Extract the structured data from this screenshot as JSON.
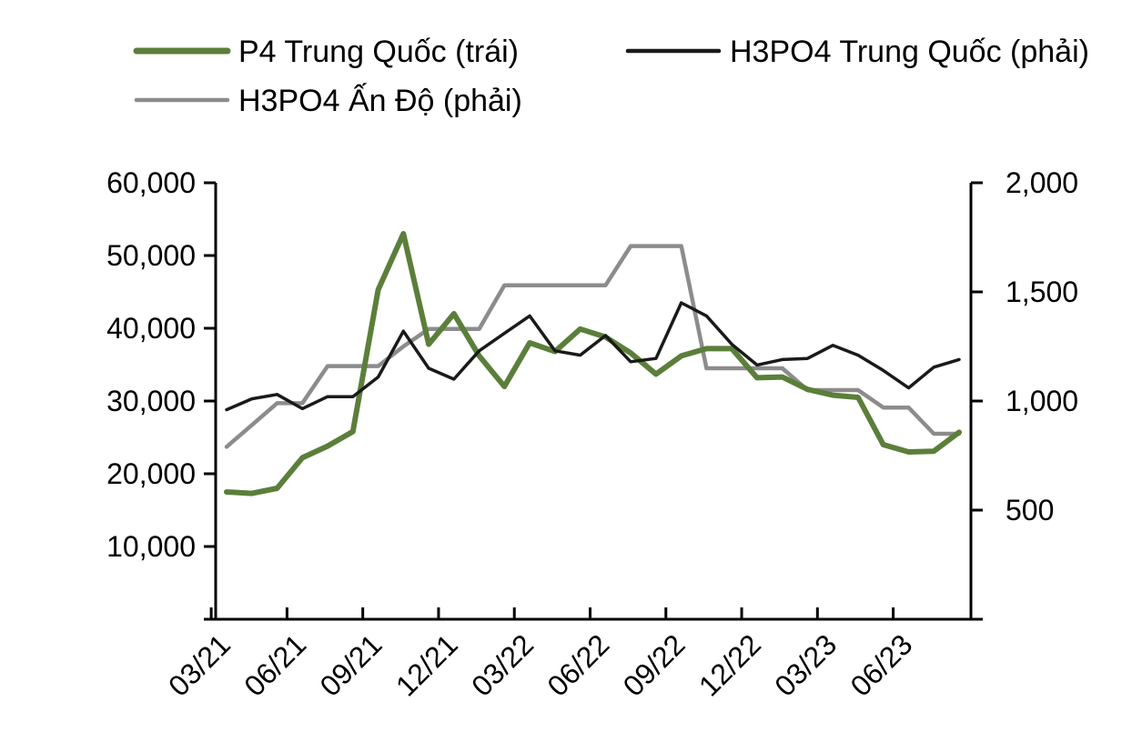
{
  "chart_data": {
    "type": "line",
    "x": [
      "03/21",
      "04/21",
      "05/21",
      "06/21",
      "07/21",
      "08/21",
      "09/21",
      "10/21",
      "11/21",
      "12/21",
      "01/22",
      "02/22",
      "03/22",
      "04/22",
      "05/22",
      "06/22",
      "07/22",
      "08/22",
      "09/22",
      "10/22",
      "11/22",
      "12/22",
      "01/23",
      "02/23",
      "03/23",
      "04/23",
      "05/23",
      "06/23",
      "07/23",
      "08/23"
    ],
    "x_tick_labels": [
      "03/21",
      "06/21",
      "09/21",
      "12/21",
      "03/22",
      "06/22",
      "09/22",
      "12/22",
      "03/23",
      "06/23"
    ],
    "y_left": {
      "range": [
        0,
        60000
      ],
      "ticks": [
        "10,000",
        "20,000",
        "30,000",
        "40,000",
        "50,000",
        "60,000"
      ]
    },
    "y_right": {
      "range": [
        0,
        2000
      ],
      "ticks": [
        "500",
        "1,000",
        "1,500",
        "2,000"
      ]
    },
    "legend_position": "top",
    "grid": false,
    "series": [
      {
        "name": "P4 Trung Quốc (trái)",
        "axis": "left",
        "color": "#5b7f3a",
        "values": [
          17500,
          17300,
          18000,
          22200,
          23800,
          25800,
          45300,
          53000,
          37800,
          42000,
          36200,
          32000,
          38000,
          36800,
          39900,
          38800,
          36600,
          33700,
          36200,
          37200,
          37200,
          33200,
          33300,
          31600,
          30800,
          30500,
          24000,
          23000,
          23100,
          25700
        ]
      },
      {
        "name": "H3PO4 Trung Quốc (phải)",
        "axis": "right",
        "color": "#1a1a1a",
        "values": [
          960,
          1010,
          1030,
          965,
          1020,
          1020,
          1110,
          1320,
          1150,
          1100,
          1230,
          1310,
          1390,
          1230,
          1210,
          1300,
          1180,
          1195,
          1450,
          1390,
          1260,
          1165,
          1190,
          1195,
          1255,
          1210,
          1140,
          1060,
          1155,
          1190
        ]
      },
      {
        "name": "H3PO4 Ấn Độ (phải)",
        "axis": "right",
        "color": "#8c8c8c",
        "values": [
          790,
          890,
          990,
          990,
          1160,
          1160,
          1160,
          1250,
          1330,
          1330,
          1330,
          1530,
          1530,
          1530,
          1530,
          1530,
          1710,
          1710,
          1710,
          1150,
          1150,
          1150,
          1150,
          1050,
          1050,
          1050,
          970,
          970,
          850,
          850
        ]
      }
    ]
  }
}
